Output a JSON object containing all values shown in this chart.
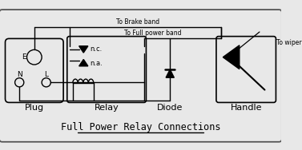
{
  "title": "Full Power Relay Connections",
  "bg_color": "#e8e8e8",
  "line_color": "#000000",
  "label_plug": "Plug",
  "label_relay": "Relay",
  "label_diode": "Diode",
  "label_handle": "Handle",
  "label_E": "E",
  "label_N": "N",
  "label_L": "L",
  "label_nc": "n.c.",
  "label_na": "n.a.",
  "label_to_brake": "To Brake band",
  "label_to_full": "To Full power band",
  "label_to_wiper": "To wiper",
  "figsize": [
    3.77,
    1.88
  ],
  "dpi": 100
}
